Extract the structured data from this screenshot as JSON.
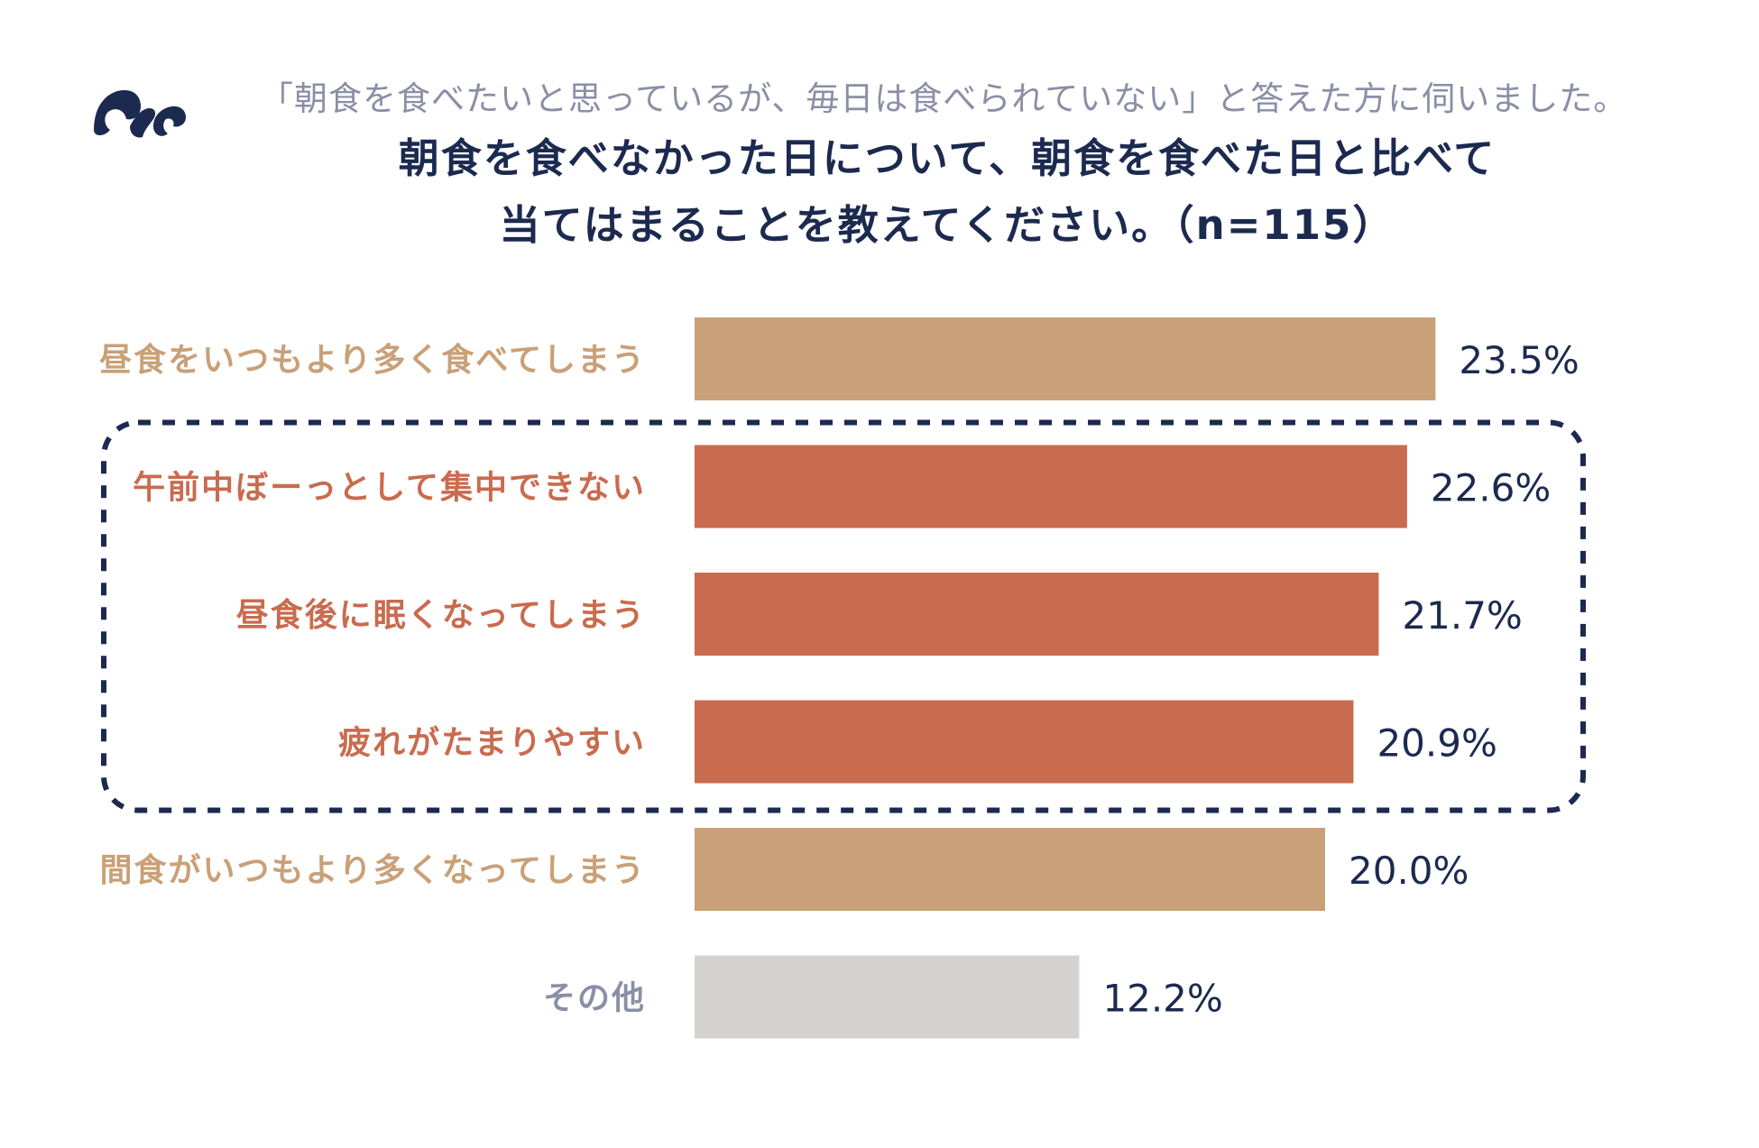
{
  "header": {
    "subtitle": "「朝食を食べたいと思っているが、毎日は食べられていない」と答えた方に伺いました。",
    "title_line1": "朝食を食べなかった日について、朝食を食べた日と比べて",
    "title_line2": "当てはまることを教えてください。（n=115）"
  },
  "logo": {
    "icon": "brand-logo-icon"
  },
  "colors": {
    "tan": "#c9a077",
    "coral": "#c96b4e",
    "gray": "#d3d2d1",
    "navy": "#1c2a50",
    "gray_text": "#8a8fa6"
  },
  "chart_data": {
    "type": "bar",
    "orientation": "horizontal",
    "title": "朝食を食べなかった日について、朝食を食べた日と比べて当てはまることを教えてください。（n=115）",
    "xlabel": "",
    "ylabel": "",
    "xlim": [
      0,
      30
    ],
    "grid": false,
    "legend": "none",
    "categories": [
      "昼食をいつもより多く食べてしまう",
      "午前中ぼーっとして集中できない",
      "昼食後に眠くなってしまう",
      "疲れがたまりやすい",
      "間食がいつもより多くなってしまう",
      "その他"
    ],
    "values": [
      23.5,
      22.6,
      21.7,
      20.9,
      20.0,
      12.2
    ],
    "value_labels": [
      "23.5%",
      "22.6%",
      "21.7%",
      "20.9%",
      "20.0%",
      "12.2%"
    ],
    "bar_color_keys": [
      "tan",
      "coral",
      "coral",
      "coral",
      "tan",
      "gray"
    ],
    "label_color_keys": [
      "tan",
      "coral",
      "coral",
      "coral",
      "tan",
      "gray_text"
    ],
    "highlight": {
      "style": "dashed-rounded-box",
      "from_index": 1,
      "to_index": 3
    }
  }
}
